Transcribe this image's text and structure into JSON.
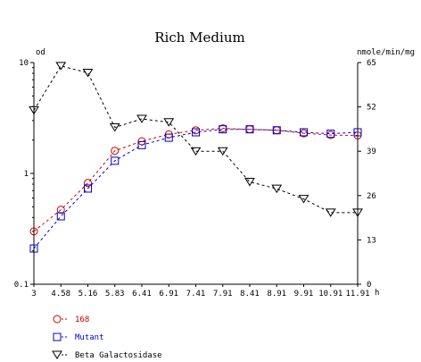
{
  "chart_data": {
    "type": "line",
    "title": "Rich Medium",
    "x": [
      3,
      4.58,
      5.16,
      5.83,
      6.41,
      6.91,
      7.41,
      7.91,
      8.41,
      8.91,
      9.91,
      10.91,
      11.91
    ],
    "x_tick_labels": [
      "3",
      "4.58",
      "5.16",
      "5.83",
      "6.41",
      "6.91",
      "7.41",
      "7.91",
      "8.41",
      "8.91",
      "9.91",
      "10.91",
      "11.91"
    ],
    "xlabel": "h",
    "xlim": [
      3,
      11.91
    ],
    "y_left": {
      "label": "od",
      "scale": "log",
      "lim": [
        0.1,
        10
      ],
      "tick_labels": [
        "0.1",
        "1",
        "10"
      ]
    },
    "y_right": {
      "label": "nmole/min/mg",
      "scale": "linear",
      "lim": [
        0,
        65
      ],
      "tick_labels": [
        "0",
        "13",
        "26",
        "39",
        "52",
        "65"
      ]
    },
    "series": [
      {
        "name": "168",
        "axis": "left",
        "marker": "circle",
        "color": "#cc0000",
        "x": [
          3,
          4.58,
          5.16,
          5.83,
          6.41,
          6.91,
          7.41,
          7.91,
          8.41,
          8.91,
          9.91,
          10.91,
          11.91
        ],
        "values": [
          0.3,
          0.47,
          0.82,
          1.6,
          1.95,
          2.25,
          2.45,
          2.55,
          2.5,
          2.45,
          2.3,
          2.22,
          2.2
        ]
      },
      {
        "name": "Mutant",
        "axis": "left",
        "marker": "square",
        "color": "#0000cc",
        "x": [
          3,
          4.58,
          5.16,
          5.83,
          6.41,
          6.91,
          7.41,
          7.91,
          8.41,
          8.91,
          9.91,
          10.91,
          11.91
        ],
        "values": [
          0.21,
          0.41,
          0.73,
          1.3,
          1.8,
          2.1,
          2.35,
          2.5,
          2.5,
          2.45,
          2.35,
          2.28,
          2.35
        ]
      },
      {
        "name": "Beta Galactosidase",
        "axis": "right",
        "marker": "triangle-down",
        "color": "#000000",
        "x": [
          3,
          4.58,
          5.16,
          5.83,
          6.41,
          6.91,
          7.41,
          7.91,
          8.41,
          8.91,
          9.91,
          10.91,
          11.91
        ],
        "values": [
          51,
          64,
          62,
          46,
          48.5,
          47.5,
          39,
          39,
          30,
          28,
          25,
          21,
          21
        ]
      }
    ],
    "legend_position": "bottom-left",
    "grid": false
  }
}
